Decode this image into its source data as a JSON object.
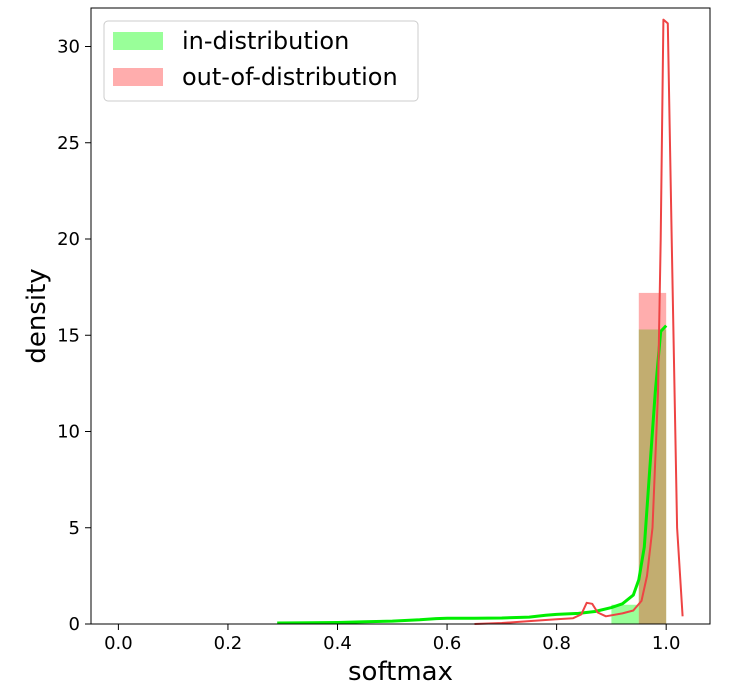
{
  "chart_data": {
    "type": "bar",
    "xlabel": "softmax",
    "ylabel": "density",
    "xlim": [
      -0.05,
      1.08
    ],
    "ylim": [
      0,
      32
    ],
    "xticks": [
      "0.0",
      "0.2",
      "0.4",
      "0.6",
      "0.8",
      "1.0"
    ],
    "yticks": [
      "0",
      "5",
      "10",
      "15",
      "20",
      "25",
      "30"
    ],
    "legend_position": "top-left",
    "legend": [
      "in-distribution",
      "out-of-distribution"
    ],
    "series": [
      {
        "name": "in-distribution",
        "color": "#00ff00",
        "bins": [
          {
            "x0": 0.9,
            "x1": 0.95,
            "value": 1.0
          },
          {
            "x0": 0.95,
            "x1": 1.0,
            "value": 15.3
          }
        ],
        "kde": [
          [
            0.29,
            0.05
          ],
          [
            0.35,
            0.06
          ],
          [
            0.4,
            0.08
          ],
          [
            0.45,
            0.12
          ],
          [
            0.5,
            0.15
          ],
          [
            0.55,
            0.22
          ],
          [
            0.58,
            0.28
          ],
          [
            0.6,
            0.3
          ],
          [
            0.65,
            0.3
          ],
          [
            0.7,
            0.31
          ],
          [
            0.75,
            0.36
          ],
          [
            0.78,
            0.45
          ],
          [
            0.8,
            0.5
          ],
          [
            0.84,
            0.55
          ],
          [
            0.87,
            0.65
          ],
          [
            0.9,
            0.85
          ],
          [
            0.92,
            1.05
          ],
          [
            0.94,
            1.5
          ],
          [
            0.95,
            2.3
          ],
          [
            0.96,
            4.0
          ],
          [
            0.97,
            8.0
          ],
          [
            0.98,
            12.0
          ],
          [
            0.99,
            15.2
          ],
          [
            1.0,
            15.5
          ]
        ]
      },
      {
        "name": "out-of-distribution",
        "color": "#ee3333",
        "bins": [
          {
            "x0": 0.95,
            "x1": 1.0,
            "value": 17.2
          }
        ],
        "kde": [
          [
            0.65,
            0.0
          ],
          [
            0.7,
            0.05
          ],
          [
            0.75,
            0.15
          ],
          [
            0.8,
            0.25
          ],
          [
            0.83,
            0.3
          ],
          [
            0.845,
            0.5
          ],
          [
            0.855,
            1.1
          ],
          [
            0.865,
            1.05
          ],
          [
            0.875,
            0.6
          ],
          [
            0.89,
            0.4
          ],
          [
            0.92,
            0.55
          ],
          [
            0.94,
            0.7
          ],
          [
            0.955,
            1.2
          ],
          [
            0.965,
            2.5
          ],
          [
            0.975,
            5.0
          ],
          [
            0.985,
            12.0
          ],
          [
            0.99,
            20.0
          ],
          [
            0.995,
            31.4
          ],
          [
            1.003,
            31.2
          ],
          [
            1.01,
            20.0
          ],
          [
            1.02,
            5.0
          ],
          [
            1.03,
            0.4
          ]
        ]
      }
    ]
  }
}
